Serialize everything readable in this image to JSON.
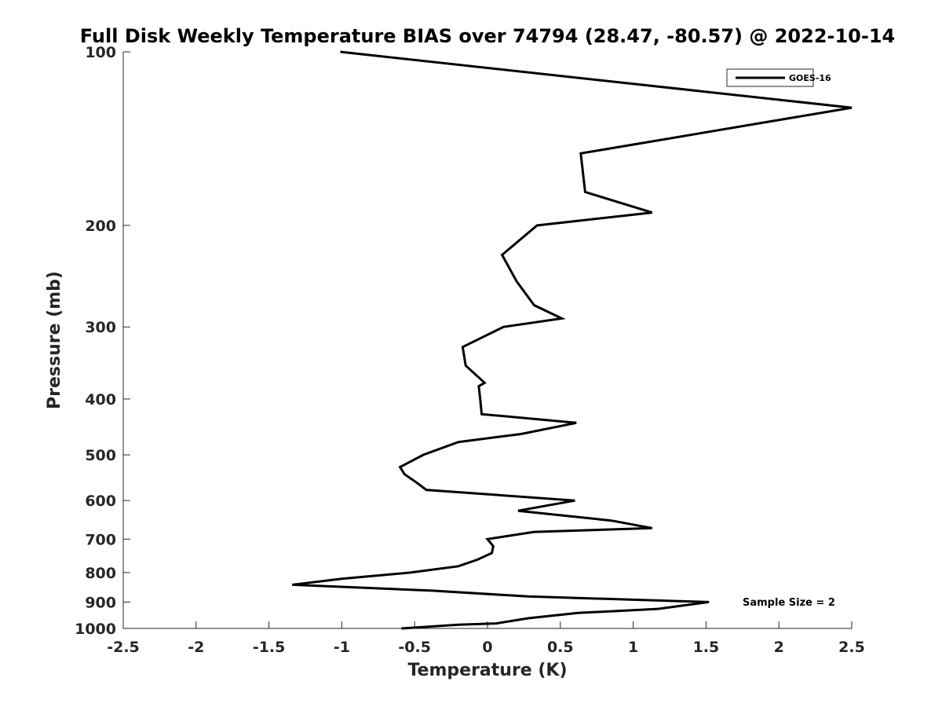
{
  "chart_data": {
    "type": "line",
    "title": "Full Disk Weekly Temperature BIAS over 74794 (28.47, -80.57) @ 2022-10-14",
    "xlabel": "Temperature (K)",
    "ylabel": "Pressure (mb)",
    "xlim": [
      -2.5,
      2.5
    ],
    "ylim": [
      100,
      1000
    ],
    "y_scale": "log",
    "y_reversed": true,
    "x_ticks": [
      "-2.5",
      "-2",
      "-1.5",
      "-1",
      "-0.5",
      "0",
      "0.5",
      "1",
      "1.5",
      "2",
      "2.5"
    ],
    "y_ticks": [
      "100",
      "200",
      "300",
      "400",
      "500",
      "600",
      "700",
      "800",
      "900",
      "1000"
    ],
    "grid": false,
    "legend_position": "top-right",
    "annotation": "Sample Size = 2",
    "series": [
      {
        "name": "GOES-16",
        "color": "#000000",
        "points": [
          [
            -1.01,
            100
          ],
          [
            2.5,
            125
          ],
          [
            0.64,
            150
          ],
          [
            0.67,
            175
          ],
          [
            1.13,
            190
          ],
          [
            0.34,
            200
          ],
          [
            0.1,
            225
          ],
          [
            0.2,
            250
          ],
          [
            0.32,
            275
          ],
          [
            0.51,
            290
          ],
          [
            0.11,
            300
          ],
          [
            -0.17,
            325
          ],
          [
            -0.15,
            350
          ],
          [
            -0.02,
            375
          ],
          [
            -0.06,
            380
          ],
          [
            -0.05,
            400
          ],
          [
            -0.04,
            425
          ],
          [
            0.61,
            440
          ],
          [
            0.23,
            460
          ],
          [
            -0.2,
            475
          ],
          [
            -0.44,
            500
          ],
          [
            -0.6,
            525
          ],
          [
            -0.57,
            540
          ],
          [
            -0.48,
            560
          ],
          [
            -0.42,
            575
          ],
          [
            0.6,
            600
          ],
          [
            0.21,
            625
          ],
          [
            0.85,
            650
          ],
          [
            1.13,
            670
          ],
          [
            0.32,
            680
          ],
          [
            0,
            700
          ],
          [
            0.04,
            720
          ],
          [
            0.03,
            740
          ],
          [
            -0.07,
            760
          ],
          [
            -0.2,
            780
          ],
          [
            -0.53,
            800
          ],
          [
            -1.0,
            820
          ],
          [
            -1.34,
            840
          ],
          [
            -0.38,
            860
          ],
          [
            0.28,
            880
          ],
          [
            1.52,
            900
          ],
          [
            1.17,
            925
          ],
          [
            0.62,
            940
          ],
          [
            0.28,
            960
          ],
          [
            0.06,
            980
          ],
          [
            -0.2,
            985
          ],
          [
            -0.59,
            1000
          ]
        ]
      }
    ]
  }
}
